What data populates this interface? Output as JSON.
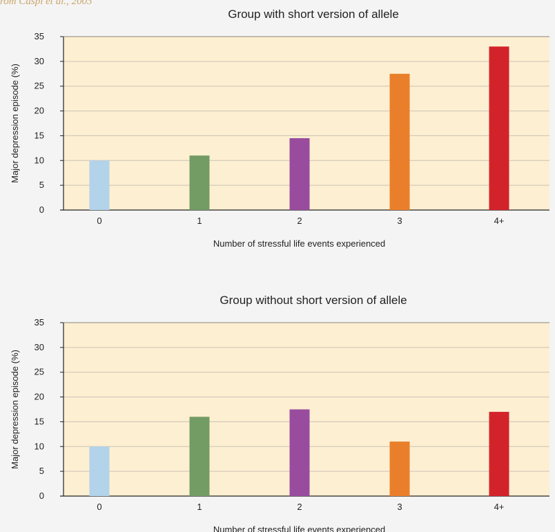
{
  "source_note": "rom Caspi et al., 2003",
  "colors": {
    "plot_background": "#fdefd1",
    "grid": "#c9c3b6",
    "bars": [
      "#b3d3ea",
      "#739c65",
      "#994c9e",
      "#ea7f2b",
      "#d3232a"
    ]
  },
  "chart_data": [
    {
      "type": "bar",
      "title": "Group with short version of allele",
      "xlabel": "Number of stressful life events experienced",
      "ylabel": "Major depression episode (%)",
      "categories": [
        "0",
        "1",
        "2",
        "3",
        "4+"
      ],
      "values": [
        10,
        11,
        14.5,
        27.5,
        33
      ],
      "ylim": [
        0,
        35
      ],
      "yticks": [
        0,
        5,
        10,
        15,
        20,
        25,
        30,
        35
      ],
      "grid": true
    },
    {
      "type": "bar",
      "title": "Group without short version of allele",
      "xlabel": "Number of stressful life events experienced",
      "ylabel": "Major depression episode (%)",
      "categories": [
        "0",
        "1",
        "2",
        "3",
        "4+"
      ],
      "values": [
        10,
        16,
        17.5,
        11,
        17
      ],
      "ylim": [
        0,
        35
      ],
      "yticks": [
        0,
        5,
        10,
        15,
        20,
        25,
        30,
        35
      ],
      "grid": true
    }
  ]
}
